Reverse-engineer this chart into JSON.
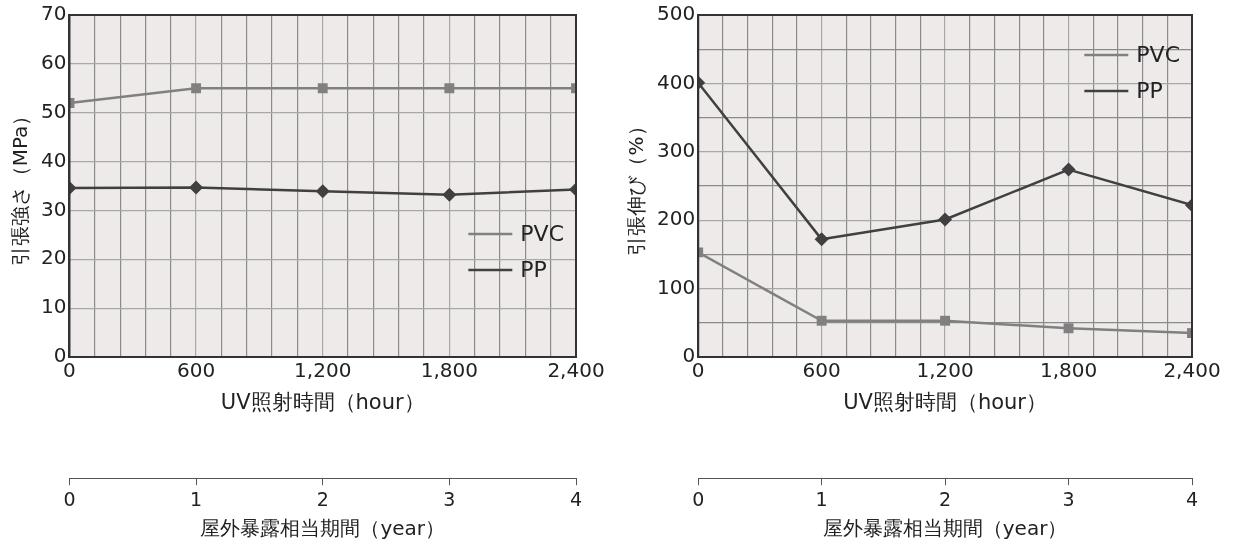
{
  "chart_data": [
    {
      "type": "line",
      "ylabel": "引張強さ（MPa）",
      "xlabel": "UV照射時間（hour）",
      "x2label": "屋外暴露相当期間（year）",
      "x": [
        0,
        600,
        1200,
        1800,
        2400
      ],
      "series": [
        {
          "name": "PVC",
          "color": "#808080",
          "marker": "square",
          "values": [
            52,
            55,
            55,
            55,
            55
          ]
        },
        {
          "name": "PP",
          "color": "#404040",
          "marker": "diamond",
          "values": [
            34.6,
            34.7,
            33.9,
            33.2,
            34.3
          ]
        }
      ],
      "xlim": [
        0,
        2400
      ],
      "xticks": [
        0,
        {
          "value": 120,
          "label": null
        },
        {
          "value": 240,
          "label": null
        },
        {
          "value": 360,
          "label": null
        },
        {
          "value": 480,
          "label": null
        },
        {
          "value": 600,
          "label": "600"
        },
        {
          "value": 720,
          "label": null
        },
        {
          "value": 840,
          "label": null
        },
        {
          "value": 960,
          "label": null
        },
        {
          "value": 1080,
          "label": null
        },
        {
          "value": 1200,
          "label": "1,200"
        },
        {
          "value": 1320,
          "label": null
        },
        {
          "value": 1440,
          "label": null
        },
        {
          "value": 1560,
          "label": null
        },
        {
          "value": 1680,
          "label": null
        },
        {
          "value": 1800,
          "label": "1,800"
        },
        {
          "value": 1920,
          "label": null
        },
        {
          "value": 2040,
          "label": null
        },
        {
          "value": 2160,
          "label": null
        },
        {
          "value": 2280,
          "label": null
        },
        {
          "value": 2400,
          "label": "2,400"
        }
      ],
      "ylim": [
        0,
        70
      ],
      "yticks": [
        0,
        10,
        20,
        30,
        40,
        50,
        60,
        70
      ],
      "x2lim": [
        0,
        4
      ],
      "x2ticks": [
        0,
        1,
        2,
        3,
        4
      ],
      "grid": true,
      "legend": "right",
      "line_style": "solid"
    },
    {
      "type": "line",
      "ylabel": "引張伸び（%）",
      "xlabel": "UV照射時間（hour）",
      "x2label": "屋外暴露相当期間（year）",
      "x": [
        0,
        600,
        1200,
        1800,
        2400
      ],
      "series": [
        {
          "name": "PVC",
          "color": "#808080",
          "marker": "square",
          "values": [
            153,
            53,
            53,
            42,
            35
          ]
        },
        {
          "name": "PP",
          "color": "#404040",
          "marker": "diamond",
          "values": [
            401,
            172,
            201,
            274,
            222
          ]
        }
      ],
      "xlim": [
        0,
        2400
      ],
      "xticks": [
        0,
        {
          "value": 120,
          "label": null
        },
        {
          "value": 240,
          "label": null
        },
        {
          "value": 360,
          "label": null
        },
        {
          "value": 480,
          "label": null
        },
        {
          "value": 600,
          "label": "600"
        },
        {
          "value": 720,
          "label": null
        },
        {
          "value": 840,
          "label": null
        },
        {
          "value": 960,
          "label": null
        },
        {
          "value": 1080,
          "label": null
        },
        {
          "value": 1200,
          "label": "1,200"
        },
        {
          "value": 1320,
          "label": null
        },
        {
          "value": 1440,
          "label": null
        },
        {
          "value": 1560,
          "label": null
        },
        {
          "value": 1680,
          "label": null
        },
        {
          "value": 1800,
          "label": "1,800"
        },
        {
          "value": 1920,
          "label": null
        },
        {
          "value": 2040,
          "label": null
        },
        {
          "value": 2160,
          "label": null
        },
        {
          "value": 2280,
          "label": null
        },
        {
          "value": 2400,
          "label": "2,400"
        }
      ],
      "ylim": [
        0,
        500
      ],
      "yticks": [
        0,
        {
          "value": 50,
          "label": null
        },
        100,
        {
          "value": 150,
          "label": null
        },
        200,
        {
          "value": 250,
          "label": null
        },
        300,
        {
          "value": 350,
          "label": null
        },
        400,
        {
          "value": 450,
          "label": null
        },
        500
      ],
      "x2lim": [
        0,
        4
      ],
      "x2ticks": [
        0,
        1,
        2,
        3,
        4
      ],
      "grid": true,
      "legend": "top right",
      "line_style": "solid"
    }
  ]
}
